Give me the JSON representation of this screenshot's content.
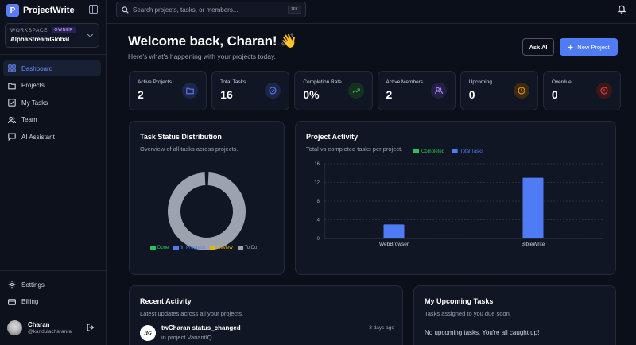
{
  "app": {
    "logo_letter": "P",
    "name": "ProjectWrite"
  },
  "workspace": {
    "label": "WORKSPACE",
    "role_badge": "OWNER",
    "name": "AlphaStreamGlobal"
  },
  "nav": {
    "items": [
      {
        "label": "Dashboard",
        "icon": "grid-icon",
        "active": true
      },
      {
        "label": "Projects",
        "icon": "folder-icon",
        "active": false
      },
      {
        "label": "My Tasks",
        "icon": "checkbox-icon",
        "active": false
      },
      {
        "label": "Team",
        "icon": "users-icon",
        "active": false
      },
      {
        "label": "AI Assistant",
        "icon": "chat-icon",
        "active": false
      }
    ],
    "bottom": [
      {
        "label": "Settings",
        "icon": "gear-icon"
      },
      {
        "label": "Billing",
        "icon": "card-icon"
      }
    ]
  },
  "user": {
    "name": "Charan",
    "handle": "@kandulacharanraj"
  },
  "search": {
    "placeholder": "Search projects, tasks, or members...",
    "shortcut": "⌘K"
  },
  "header": {
    "title": "Welcome back, Charan! 👋",
    "subtitle": "Here's what's happening with your projects today.",
    "ask_ai_label": "Ask AI",
    "new_project_label": "New Project"
  },
  "stats": [
    {
      "label": "Active Projects",
      "value": "2",
      "icon": "folder-icon",
      "color": "#5b7cfa"
    },
    {
      "label": "Total Tasks",
      "value": "16",
      "icon": "check-circle-icon",
      "color": "#5b7cfa"
    },
    {
      "label": "Completion Rate",
      "value": "0%",
      "icon": "trend-up-icon",
      "color": "#22c55e"
    },
    {
      "label": "Active Members",
      "value": "2",
      "icon": "users-icon",
      "color": "#a78bfa"
    },
    {
      "label": "Upcoming",
      "value": "0",
      "icon": "clock-icon",
      "color": "#f59e0b"
    },
    {
      "label": "Overdue",
      "value": "0",
      "icon": "alert-icon",
      "color": "#ef4444"
    }
  ],
  "task_status": {
    "title": "Task Status Distribution",
    "subtitle": "Overview of all tasks across projects.",
    "legend": [
      {
        "label": "Done",
        "color": "#22c55e"
      },
      {
        "label": "In Progress",
        "color": "#4f7bf5"
      },
      {
        "label": "Review",
        "color": "#eab308"
      },
      {
        "label": "To Do",
        "color": "#9ca3af"
      }
    ]
  },
  "project_activity": {
    "title": "Project Activity",
    "subtitle": "Total vs completed tasks per project."
  },
  "chart_data": [
    {
      "type": "pie",
      "categories": [
        "Done",
        "In Progress",
        "Review",
        "To Do"
      ],
      "values": [
        0,
        0,
        0,
        16
      ],
      "colors": [
        "#22c55e",
        "#4f7bf5",
        "#eab308",
        "#9ca3af"
      ],
      "donut": true,
      "legend_position": "bottom"
    },
    {
      "type": "bar",
      "categories": [
        "WebBrowser",
        "BibleWrite"
      ],
      "series": [
        {
          "name": "Completed",
          "values": [
            0,
            0
          ],
          "color": "#22c55e"
        },
        {
          "name": "Total Tasks",
          "values": [
            3,
            13
          ],
          "color": "#4f7bf5"
        }
      ],
      "yticks": [
        0,
        4,
        8,
        12,
        16
      ],
      "ylim": [
        0,
        16
      ],
      "grid": true,
      "legend_position": "top"
    }
  ],
  "recent_activity": {
    "title": "Recent Activity",
    "subtitle": "Latest updates across all your projects.",
    "items": [
      {
        "avatar_text": "HG",
        "title": "twCharan status_changed",
        "detail": "in project VariantIQ",
        "time": "3 days ago"
      }
    ]
  },
  "upcoming_tasks": {
    "title": "My Upcoming Tasks",
    "subtitle": "Tasks assigned to you due soon.",
    "empty_text": "No upcoming tasks. You're all caught up!"
  }
}
